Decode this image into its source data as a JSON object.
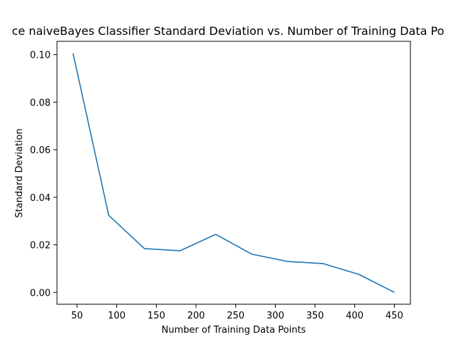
{
  "chart_data": {
    "type": "line",
    "title": "ce naiveBayes Classifier   Standard Deviation vs. Number of Training Data Po",
    "xlabel": "Number of Training Data Points",
    "ylabel": "Standard Deviation",
    "x": [
      45,
      90,
      135,
      180,
      225,
      270,
      315,
      360,
      405,
      450
    ],
    "series": [
      {
        "values": [
          0.1006,
          0.0324,
          0.0184,
          0.0175,
          0.0244,
          0.0161,
          0.013,
          0.0121,
          0.0076,
          0.0
        ]
      }
    ],
    "xlim": [
      24.75,
      470.25
    ],
    "ylim": [
      -0.005,
      0.1056
    ],
    "xticks": [
      50,
      100,
      150,
      200,
      250,
      300,
      350,
      400,
      450
    ],
    "xtick_labels": [
      "50",
      "100",
      "150",
      "200",
      "250",
      "300",
      "350",
      "400",
      "450"
    ],
    "yticks": [
      0.0,
      0.02,
      0.04,
      0.06,
      0.08,
      0.1
    ],
    "ytick_labels": [
      "0.00",
      "0.02",
      "0.04",
      "0.06",
      "0.08",
      "0.10"
    ],
    "grid": false,
    "line_color": "#1f77b4"
  }
}
